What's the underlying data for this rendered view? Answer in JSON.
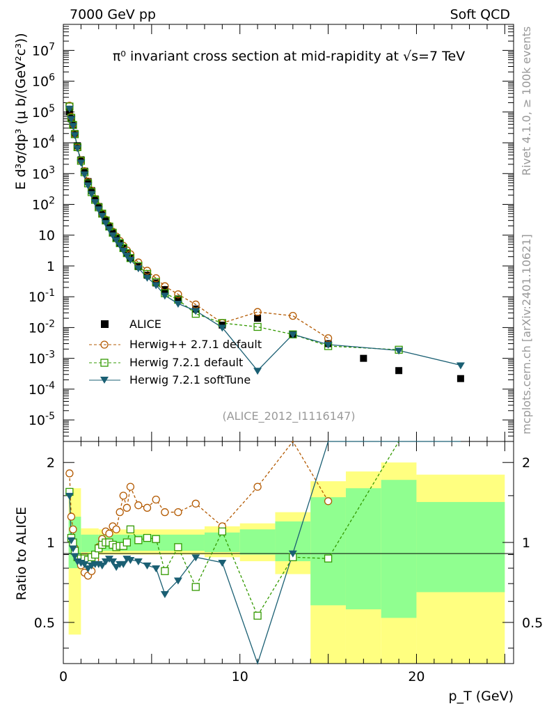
{
  "header": {
    "left": "7000 GeV pp",
    "right": "Soft QCD"
  },
  "side": {
    "rivet": "Rivet 4.1.0, ≥ 100k events",
    "mcplots": "mcplots.cern.ch [arXiv:2401.10621]"
  },
  "chart_data": {
    "type": "scatter",
    "title": "π⁰ invariant cross section at mid-rapidity at √s=7 TeV",
    "ylabel": "E d³σ/dp³ (μ b/(GeV²c³))",
    "xlabel": "p_T (GeV)",
    "ratio_ylabel": "Ratio to ALICE",
    "analysis": "(ALICE_2012_I1116147)",
    "xlim": [
      0,
      25.5
    ],
    "ylim": [
      2e-06,
      70000000.0
    ],
    "ratio_ylim": [
      0.35,
      2.4
    ],
    "x_ticks": [
      "0",
      "10",
      "20"
    ],
    "y_ticks": [
      "10^-5",
      "10^-4",
      "10^-3",
      "10^-2",
      "10^-1",
      "1",
      "10",
      "10^2",
      "10^3",
      "10^4",
      "10^5",
      "10^6",
      "10^7"
    ],
    "ratio_ticks": [
      "0.5",
      "1",
      "2"
    ],
    "legend": [
      "ALICE",
      "Herwig++ 2.7.1 default",
      "Herwig 7.2.1 default",
      "Herwig 7.2.1 softTune"
    ],
    "series": [
      {
        "name": "ALICE",
        "color": "#000000",
        "x": [
          0.35,
          0.45,
          0.55,
          0.65,
          0.8,
          1.0,
          1.2,
          1.4,
          1.6,
          1.8,
          2.0,
          2.2,
          2.4,
          2.6,
          2.8,
          3.0,
          3.2,
          3.4,
          3.6,
          3.8,
          4.25,
          4.75,
          5.25,
          5.75,
          6.5,
          7.5,
          9.0,
          11.0,
          13.0,
          15.0,
          17.0,
          19.0,
          22.5
        ],
        "y": [
          100000,
          60000,
          38000,
          20000,
          8000,
          2800,
          1200,
          550,
          280,
          150,
          85,
          50,
          30,
          19,
          12,
          8,
          5.5,
          3.8,
          2.6,
          1.8,
          0.95,
          0.5,
          0.28,
          0.17,
          0.085,
          0.04,
          0.012,
          0.02,
          0.006,
          0.003,
          0.001,
          0.0004,
          0.00022
        ]
      },
      {
        "name": "Herwig++ 2.7.1 default",
        "color": "#b35900",
        "x": [
          0.35,
          0.45,
          0.55,
          0.65,
          0.8,
          1.0,
          1.2,
          1.4,
          1.6,
          1.8,
          2.0,
          2.2,
          2.4,
          2.6,
          2.8,
          3.0,
          3.2,
          3.4,
          3.6,
          3.8,
          4.25,
          4.75,
          5.25,
          5.75,
          6.5,
          7.5,
          9.0,
          11.0,
          13.0,
          15.0
        ],
        "y": [
          160000,
          70000,
          40000,
          19000,
          7000,
          2700,
          1200,
          550,
          280,
          150,
          85,
          50,
          32,
          20,
          13,
          9,
          6.5,
          4.5,
          3.2,
          2.4,
          1.3,
          0.7,
          0.4,
          0.22,
          0.12,
          0.056,
          0.014,
          0.032,
          0.024,
          0.0045
        ],
        "ratio": [
          1.82,
          1.25,
          1.12,
          0.95,
          0.88,
          0.82,
          0.77,
          0.75,
          0.78,
          0.86,
          0.96,
          1.03,
          1.1,
          1.08,
          1.15,
          1.12,
          1.3,
          1.5,
          1.35,
          1.62,
          1.38,
          1.35,
          1.45,
          1.3,
          1.3,
          1.4,
          1.15,
          1.62,
          3.5,
          1.43
        ]
      },
      {
        "name": "Herwig 7.2.1 default",
        "color": "#339900",
        "x": [
          0.35,
          0.45,
          0.55,
          0.65,
          0.8,
          1.0,
          1.2,
          1.4,
          1.6,
          1.8,
          2.0,
          2.2,
          2.4,
          2.6,
          2.8,
          3.0,
          3.2,
          3.4,
          3.6,
          3.8,
          4.25,
          4.75,
          5.25,
          5.75,
          6.5,
          7.5,
          9.0,
          11.0,
          13.0,
          15.0,
          19.0
        ],
        "y": [
          150000,
          65000,
          38000,
          19000,
          7200,
          2600,
          1100,
          480,
          250,
          140,
          80,
          50,
          30,
          19,
          12,
          8,
          5.5,
          3.8,
          2.6,
          1.8,
          1.0,
          0.55,
          0.3,
          0.13,
          0.08,
          0.028,
          0.014,
          0.0105,
          0.006,
          0.0025,
          0.0019
        ],
        "ratio": [
          1.55,
          1.04,
          1.0,
          0.93,
          0.88,
          0.87,
          0.87,
          0.86,
          0.88,
          0.9,
          0.95,
          0.98,
          1.0,
          1.0,
          0.98,
          0.96,
          0.97,
          0.97,
          1.0,
          1.12,
          1.02,
          1.04,
          1.03,
          0.78,
          0.96,
          0.68,
          1.1,
          0.53,
          0.88,
          0.87,
          4.9
        ]
      },
      {
        "name": "Herwig 7.2.1 softTune",
        "color": "#1a5f73",
        "x": [
          0.35,
          0.45,
          0.55,
          0.65,
          0.8,
          1.0,
          1.2,
          1.4,
          1.6,
          1.8,
          2.0,
          2.2,
          2.4,
          2.6,
          2.8,
          3.0,
          3.2,
          3.4,
          3.6,
          3.8,
          4.25,
          4.75,
          5.25,
          5.75,
          6.5,
          7.5,
          9.0,
          11.0,
          13.0,
          15.0,
          19.0,
          22.5
        ],
        "y": [
          130000,
          60000,
          36000,
          18000,
          6800,
          2300,
          950,
          420,
          220,
          120,
          70,
          43,
          25,
          16,
          10,
          7,
          4.8,
          3.2,
          2.2,
          1.6,
          0.85,
          0.42,
          0.24,
          0.11,
          0.06,
          0.035,
          0.01,
          0.0004,
          0.006,
          0.0028,
          0.0018,
          0.0006
        ],
        "ratio": [
          1.5,
          1.02,
          0.95,
          0.89,
          0.85,
          0.84,
          0.83,
          0.8,
          0.82,
          0.83,
          0.83,
          0.82,
          0.85,
          0.87,
          0.85,
          0.81,
          0.83,
          0.83,
          0.87,
          0.86,
          0.85,
          0.82,
          0.8,
          0.64,
          0.72,
          0.88,
          0.84,
          0.3,
          0.91,
          3.0,
          8.0,
          8.0
        ]
      }
    ]
  }
}
